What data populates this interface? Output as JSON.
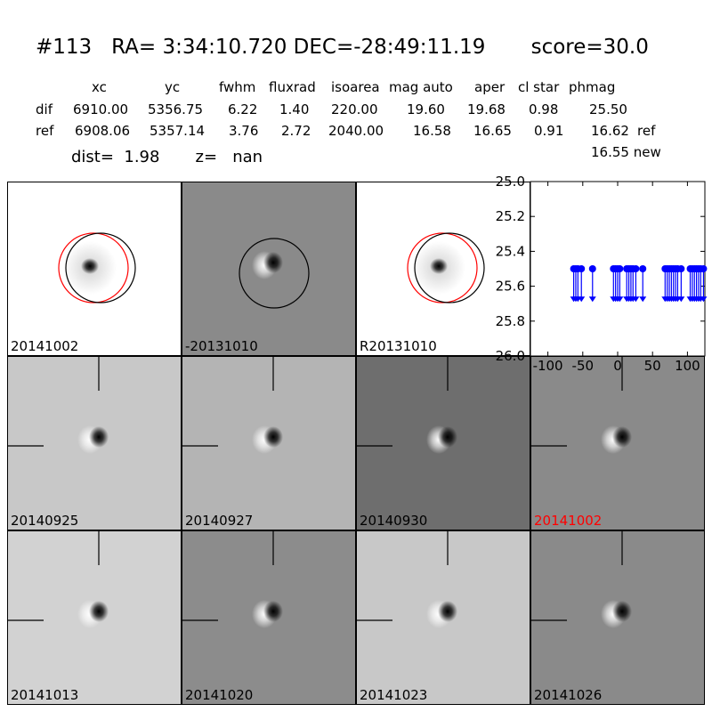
{
  "header": {
    "title": "#113   RA= 3:34:10.720 DEC=-28:49:11.19       score=30.0",
    "columns": [
      "xc",
      "yc",
      "fwhm",
      "fluxrad",
      "isoarea",
      "mag auto",
      "aper",
      "cl star",
      "phmag"
    ],
    "rows": [
      {
        "label": "dif",
        "values": [
          "6910.00",
          "5356.75",
          "6.22",
          "1.40",
          "220.00",
          "19.60",
          "19.68",
          "0.98",
          "25.50"
        ],
        "suffix": ""
      },
      {
        "label": "ref",
        "values": [
          "6908.06",
          "5357.14",
          "3.76",
          "2.72",
          "2040.00",
          "16.58",
          "16.65",
          "0.91",
          "16.62"
        ],
        "suffix": "ref"
      }
    ],
    "new_mag": "16.55 new",
    "dist_line": "dist=  1.98       z=   nan"
  },
  "stamps": [
    {
      "label": "20141002",
      "bg": "#ffffff",
      "kind": "star",
      "circles": [
        "red",
        "black"
      ],
      "label_color": "#000000"
    },
    {
      "label": "-20131010",
      "bg": "#8a8a8a",
      "kind": "dipole",
      "circles": [
        "black"
      ],
      "label_color": "#000000"
    },
    {
      "label": "R20131010",
      "bg": "#ffffff",
      "kind": "star",
      "circles": [
        "red",
        "black"
      ],
      "label_color": "#000000"
    },
    {
      "label": "20140925",
      "bg": "#c8c8c8",
      "kind": "dipole",
      "crosshair": true,
      "label_color": "#000000"
    },
    {
      "label": "20140927",
      "bg": "#b4b4b4",
      "kind": "dipole",
      "crosshair": true,
      "label_color": "#000000"
    },
    {
      "label": "20140930",
      "bg": "#6e6e6e",
      "kind": "dipole",
      "crosshair": true,
      "label_color": "#000000"
    },
    {
      "label": "20141002",
      "bg": "#8a8a8a",
      "kind": "dipole",
      "crosshair": true,
      "label_color": "#ff0000"
    },
    {
      "label": "20141013",
      "bg": "#d2d2d2",
      "kind": "dipole",
      "crosshair": true,
      "label_color": "#000000"
    },
    {
      "label": "20141020",
      "bg": "#8c8c8c",
      "kind": "dipole",
      "crosshair": true,
      "label_color": "#000000"
    },
    {
      "label": "20141023",
      "bg": "#c8c8c8",
      "kind": "dipole",
      "crosshair": true,
      "label_color": "#000000"
    },
    {
      "label": "20141026",
      "bg": "#8a8a8a",
      "kind": "dipole",
      "crosshair": true,
      "label_color": "#000000"
    }
  ],
  "chart_data": {
    "type": "scatter",
    "title": "",
    "xlabel": "",
    "ylabel": "",
    "xlim": [
      -125,
      125
    ],
    "ylim": [
      26.0,
      25.0
    ],
    "xticks": [
      -100,
      -50,
      0,
      50,
      100
    ],
    "yticks": [
      25.0,
      25.2,
      25.4,
      25.6,
      25.8,
      26.0
    ],
    "ytick_labels": [
      "25.0",
      "25.2",
      "25.4",
      "25.6",
      "25.8",
      "26.0"
    ],
    "marker_color": "#0000ff",
    "upper_limit_arrow_to": 25.68,
    "series": [
      {
        "x": [
          -63,
          -60,
          -57,
          -52,
          -36,
          -6,
          -3,
          0,
          3,
          13,
          16,
          19,
          22,
          26,
          36,
          68,
          71,
          74,
          77,
          80,
          83,
          86,
          91,
          104,
          107,
          110,
          113,
          116,
          119,
          123
        ],
        "y": [
          25.5,
          25.5,
          25.5,
          25.5,
          25.5,
          25.5,
          25.5,
          25.5,
          25.5,
          25.5,
          25.5,
          25.5,
          25.5,
          25.5,
          25.5,
          25.5,
          25.5,
          25.5,
          25.5,
          25.5,
          25.5,
          25.5,
          25.5,
          25.5,
          25.5,
          25.5,
          25.5,
          25.5,
          25.5,
          25.5
        ]
      }
    ]
  }
}
